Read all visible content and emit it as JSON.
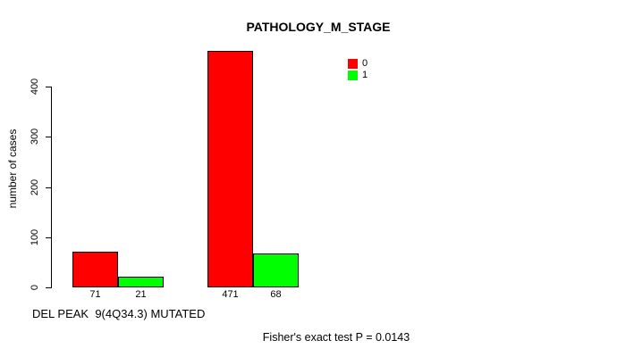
{
  "chart_data": {
    "type": "bar",
    "title": "PATHOLOGY_M_STAGE",
    "ylabel": "number of cases",
    "xlabel": "DEL PEAK  9(4Q34.3) MUTATED",
    "annotation": "Fisher's exact test P = 0.0143",
    "yticks": [
      0,
      100,
      200,
      300,
      400
    ],
    "ylim": [
      0,
      471
    ],
    "grid": false,
    "legend_position": "top-right",
    "legend": [
      {
        "label": "0",
        "color": "#FF0000"
      },
      {
        "label": "1",
        "color": "#00FF00"
      }
    ],
    "series": [
      {
        "name": "0",
        "color": "#FF0000",
        "values": [
          71,
          471
        ]
      },
      {
        "name": "1",
        "color": "#00FF00",
        "values": [
          21,
          68
        ]
      }
    ],
    "bar_labels": [
      "71",
      "21",
      "471",
      "68"
    ]
  }
}
